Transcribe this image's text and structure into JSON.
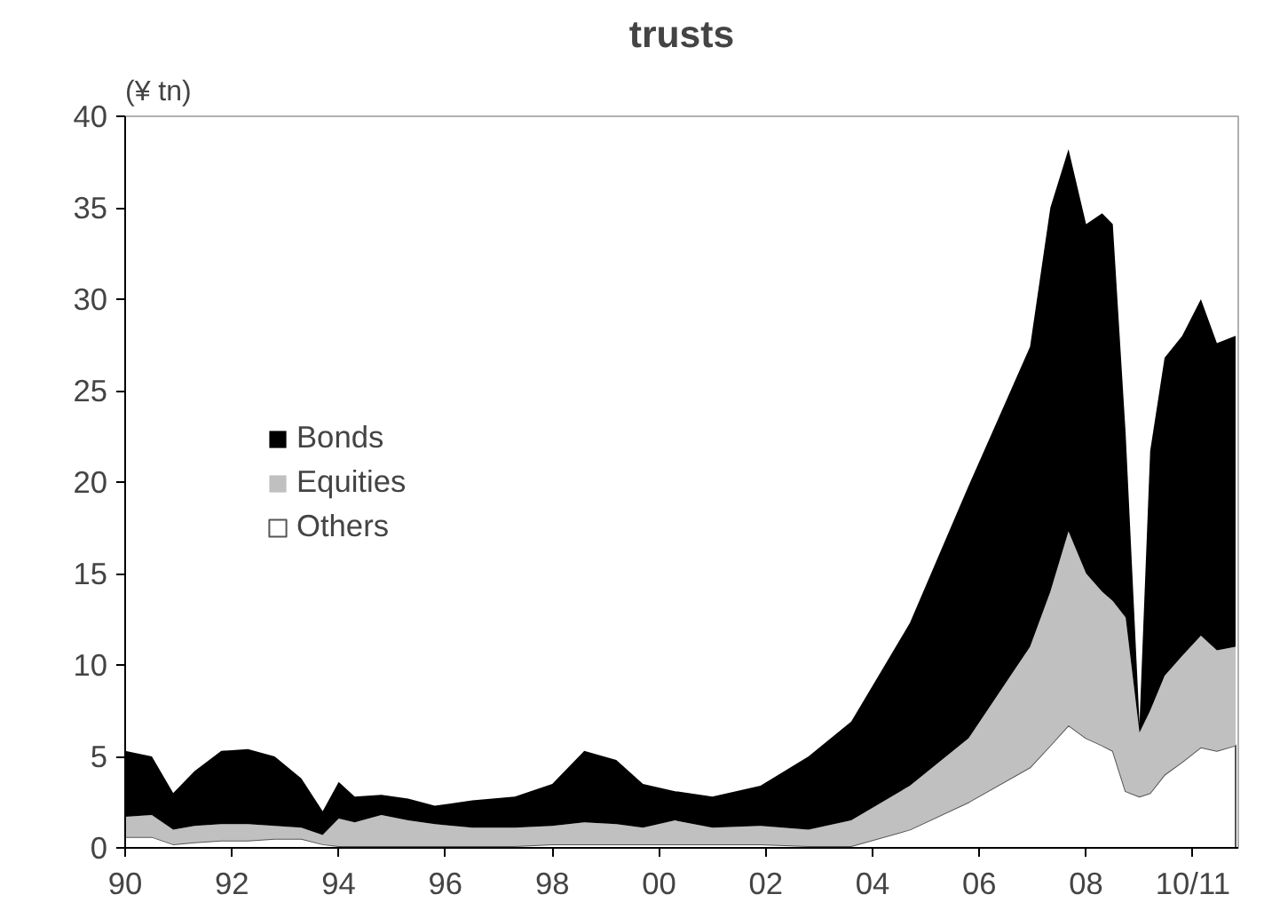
{
  "chart_data": {
    "type": "area",
    "stacked": true,
    "title": "trusts",
    "ylabel": "(¥ tn)",
    "x": [
      1990.0,
      1990.5,
      1990.9,
      1991.3,
      1991.8,
      1992.3,
      1992.8,
      1993.3,
      1993.7,
      1994.0,
      1994.3,
      1994.8,
      1995.3,
      1995.8,
      1996.5,
      1997.3,
      1998.0,
      1998.6,
      1999.2,
      1999.7,
      2000.3,
      2001.0,
      2001.9,
      2002.8,
      2003.6,
      2004.7,
      2005.8,
      2006.95,
      2007.33,
      2007.67,
      2008.0,
      2008.3,
      2008.5,
      2008.74,
      2009.0,
      2009.2,
      2009.47,
      2009.8,
      2010.15,
      2010.45,
      2010.8
    ],
    "series": [
      {
        "name": "Others",
        "color": "#ffffff",
        "values": [
          0.6,
          0.6,
          0.2,
          0.3,
          0.4,
          0.4,
          0.5,
          0.5,
          0.2,
          0.1,
          0.1,
          0.1,
          0.1,
          0.1,
          0.1,
          0.1,
          0.2,
          0.2,
          0.2,
          0.2,
          0.2,
          0.2,
          0.2,
          0.1,
          0.1,
          1.0,
          2.5,
          4.4,
          5.6,
          6.7,
          6.0,
          5.6,
          5.3,
          3.1,
          2.8,
          3.0,
          4.0,
          4.7,
          5.5,
          5.3,
          5.6
        ]
      },
      {
        "name": "Equities",
        "color": "#c0c0c0",
        "values": [
          1.1,
          1.2,
          0.8,
          0.9,
          0.9,
          0.9,
          0.7,
          0.6,
          0.5,
          1.5,
          1.3,
          1.7,
          1.4,
          1.2,
          1.0,
          1.0,
          1.0,
          1.2,
          1.1,
          0.9,
          1.3,
          0.9,
          1.0,
          0.9,
          1.4,
          2.4,
          3.5,
          6.6,
          8.4,
          10.6,
          9.0,
          8.4,
          8.2,
          9.5,
          3.5,
          4.5,
          5.4,
          5.8,
          6.1,
          5.5,
          5.4
        ]
      },
      {
        "name": "Bonds",
        "color": "#000000",
        "values": [
          3.6,
          3.2,
          2.0,
          3.0,
          4.0,
          4.1,
          3.8,
          2.7,
          1.3,
          2.0,
          1.4,
          1.1,
          1.2,
          1.0,
          1.5,
          1.7,
          2.3,
          3.9,
          3.5,
          2.4,
          1.6,
          1.7,
          2.2,
          4.0,
          5.4,
          8.9,
          13.8,
          16.4,
          21.0,
          20.9,
          19.1,
          20.7,
          20.6,
          10.1,
          0.5,
          14.2,
          17.4,
          17.5,
          18.4,
          16.8,
          17.0
        ]
      }
    ],
    "xlim": [
      1990,
      2010.85
    ],
    "xticks": [
      {
        "value": 1990,
        "label": "90"
      },
      {
        "value": 1992,
        "label": "92"
      },
      {
        "value": 1994,
        "label": "94"
      },
      {
        "value": 1996,
        "label": "96"
      },
      {
        "value": 1998,
        "label": "98"
      },
      {
        "value": 2000,
        "label": "00"
      },
      {
        "value": 2002,
        "label": "02"
      },
      {
        "value": 2004,
        "label": "04"
      },
      {
        "value": 2006,
        "label": "06"
      },
      {
        "value": 2008,
        "label": "08"
      },
      {
        "value": 2010,
        "label": "10/11"
      }
    ],
    "ylim": [
      0,
      40
    ],
    "yticks": [
      0,
      5,
      10,
      15,
      20,
      25,
      30,
      35,
      40
    ],
    "grid": false,
    "legend": "left"
  }
}
